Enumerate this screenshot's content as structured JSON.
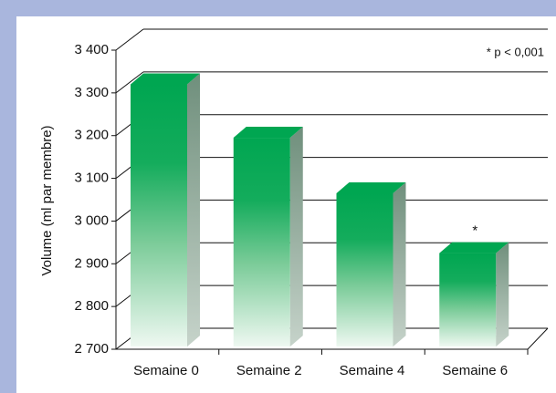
{
  "chart_data": {
    "type": "bar",
    "ylabel": "Volume (ml par membre)",
    "annotation": "* p < 0,001",
    "categories": [
      "Semaine 0",
      "Semaine 2",
      "Semaine 4",
      "Semaine 6"
    ],
    "values": [
      3320,
      3195,
      3065,
      2925
    ],
    "bar_labels": [
      null,
      null,
      null,
      "*"
    ],
    "ylim": [
      2700,
      3400
    ],
    "yticks": [
      {
        "value": 2700,
        "label": "2 700"
      },
      {
        "value": 2800,
        "label": "2 800"
      },
      {
        "value": 2900,
        "label": "2 900"
      },
      {
        "value": 3000,
        "label": "3 000"
      },
      {
        "value": 3100,
        "label": "3 100"
      },
      {
        "value": 3200,
        "label": "3 200"
      },
      {
        "value": 3300,
        "label": "3 300"
      },
      {
        "value": 3400,
        "label": "3 400"
      }
    ],
    "color": "#00a651",
    "grid": true
  }
}
